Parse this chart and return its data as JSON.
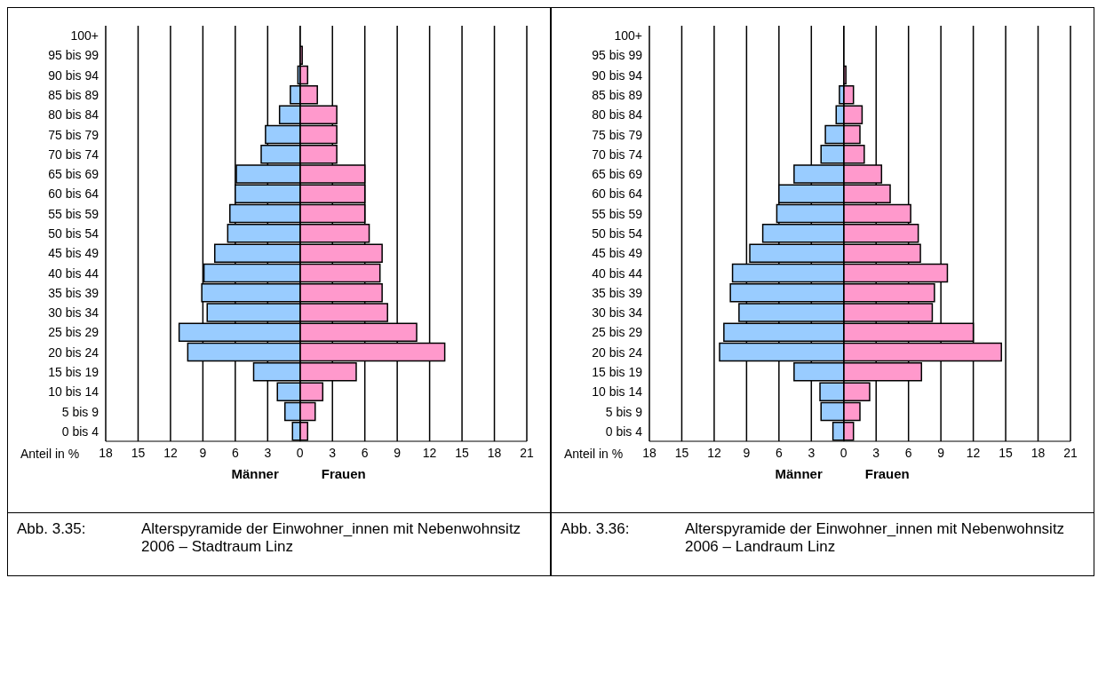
{
  "chart_data": [
    {
      "type": "bar",
      "orientation": "horizontal",
      "stacked": true,
      "grid": "x",
      "xlabel": "Anteil in %",
      "categories": [
        "100+",
        "95 bis 99",
        "90 bis 94",
        "85 bis 89",
        "80 bis 84",
        "75 bis 79",
        "70 bis 74",
        "65 bis 69",
        "60 bis 64",
        "55 bis 59",
        "50 bis 54",
        "45 bis 49",
        "40 bis 44",
        "35 bis 39",
        "30 bis 34",
        "25 bis 29",
        "20 bis 24",
        "15 bis 19",
        "10 bis 14",
        "5 bis 9",
        "0 bis 4"
      ],
      "series": [
        {
          "name": "Männer",
          "color": "#99ccff",
          "values": [
            0,
            0,
            -0.2,
            -0.9,
            -1.9,
            -3.2,
            -3.6,
            -5.9,
            -6.0,
            -6.5,
            -6.7,
            -7.9,
            -8.9,
            -9.1,
            -8.6,
            -11.2,
            -10.4,
            -4.3,
            -2.1,
            -1.4,
            -0.7
          ]
        },
        {
          "name": "Frauen",
          "color": "#ff99cc",
          "values": [
            0,
            0.2,
            0.7,
            1.6,
            3.4,
            3.4,
            3.4,
            6.0,
            6.0,
            6.0,
            6.4,
            7.6,
            7.4,
            7.6,
            8.1,
            10.8,
            13.4,
            5.2,
            2.1,
            1.4,
            0.7
          ]
        }
      ],
      "xlim": [
        -18,
        21
      ],
      "xticks": [
        {
          "value": -18,
          "label": "18"
        },
        {
          "value": -15,
          "label": "15"
        },
        {
          "value": -12,
          "label": "12"
        },
        {
          "value": -9,
          "label": "9"
        },
        {
          "value": -6,
          "label": "6"
        },
        {
          "value": -3,
          "label": "3"
        },
        0,
        3,
        6,
        9,
        12,
        15,
        18,
        21
      ],
      "annotations": [
        "Abb. 3.35:",
        "Alterspyramide der Einwohner_innen mit Nebenwohnsitz 2006 – Stadtraum Linz"
      ]
    },
    {
      "type": "bar",
      "orientation": "horizontal",
      "stacked": true,
      "grid": "x",
      "xlabel": "Anteil in %",
      "categories": [
        "100+",
        "95 bis 99",
        "90 bis 94",
        "85 bis 89",
        "80 bis 84",
        "75 bis 79",
        "70 bis 74",
        "65 bis 69",
        "60 bis 64",
        "55 bis 59",
        "50 bis 54",
        "45 bis 49",
        "40 bis 44",
        "35 bis 39",
        "30 bis 34",
        "25 bis 29",
        "20 bis 24",
        "15 bis 19",
        "10 bis 14",
        "5 bis 9",
        "0 bis 4"
      ],
      "series": [
        {
          "name": "Männer",
          "color": "#99ccff",
          "values": [
            0,
            0,
            0,
            -0.4,
            -0.7,
            -1.7,
            -2.1,
            -4.6,
            -6.0,
            -6.2,
            -7.5,
            -8.7,
            -10.3,
            -10.5,
            -9.7,
            -11.1,
            -11.5,
            -4.6,
            -2.2,
            -2.1,
            -1.0
          ]
        },
        {
          "name": "Frauen",
          "color": "#ff99cc",
          "values": [
            0,
            0,
            0.2,
            0.9,
            1.7,
            1.5,
            1.9,
            3.5,
            4.3,
            6.2,
            6.9,
            7.1,
            9.6,
            8.4,
            8.2,
            12.0,
            14.6,
            7.2,
            2.4,
            1.5,
            0.9
          ]
        }
      ],
      "xlim": [
        -18,
        21
      ],
      "xticks": [
        {
          "value": -18,
          "label": "18"
        },
        {
          "value": -15,
          "label": "15"
        },
        {
          "value": -12,
          "label": "12"
        },
        {
          "value": -9,
          "label": "9"
        },
        {
          "value": -6,
          "label": "6"
        },
        {
          "value": -3,
          "label": "3"
        },
        0,
        3,
        6,
        9,
        12,
        15,
        18,
        21
      ],
      "annotations": [
        "Abb. 3.36:",
        "Alterspyramide der Einwohner_innen mit Nebenwohnsitz 2006 – Landraum Linz"
      ]
    }
  ]
}
